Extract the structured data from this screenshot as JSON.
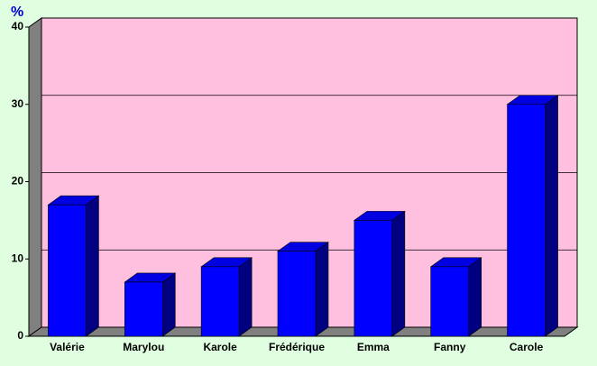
{
  "chart_data": {
    "type": "bar3d",
    "y_label": "%",
    "categories": [
      "Valérie",
      "Marylou",
      "Karole",
      "Frédérique",
      "Emma",
      "Fanny",
      "Carole"
    ],
    "values": [
      17,
      7,
      9,
      11,
      15,
      9,
      30
    ],
    "color": "#0000ff",
    "ylim": [
      0,
      40
    ],
    "yticks": [
      0,
      10,
      20,
      30,
      40
    ],
    "grid": true
  }
}
